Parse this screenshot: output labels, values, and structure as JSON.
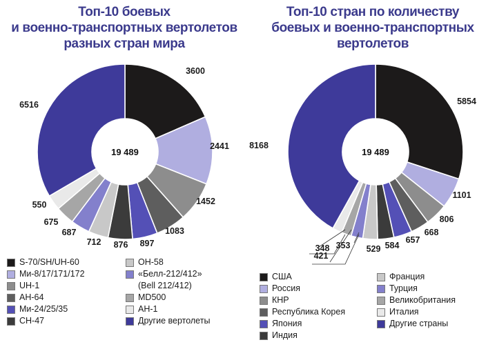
{
  "colors": {
    "title": "#3b3a8c",
    "palette": [
      "#1c1a1a",
      "#b0aee0",
      "#8d8d8d",
      "#5e5e5e",
      "#5450b6",
      "#3b3b3b",
      "#c8c8c8",
      "#8380cc",
      "#a6a6a6",
      "#e9e9e9",
      "#3e3a9a"
    ]
  },
  "chart_data": [
    {
      "type": "pie",
      "title_lines": [
        "Топ-10 боевых",
        "и военно-транспортных вертолетов",
        "разных стран мира"
      ],
      "total_label": "19 489",
      "slices": [
        {
          "label": "S-70/SH/UH-60",
          "value": 3600,
          "value_label": "3600",
          "color": "#1c1a1a"
        },
        {
          "label": "Ми-8/17/171/172",
          "value": 2441,
          "value_label": "2441",
          "color": "#b0aee0"
        },
        {
          "label": "UH-1",
          "value": 1452,
          "value_label": "1452",
          "color": "#8d8d8d"
        },
        {
          "label": "AH-64",
          "value": 1083,
          "value_label": "1083",
          "color": "#5e5e5e"
        },
        {
          "label": "Ми-24/25/35",
          "value": 897,
          "value_label": "897",
          "color": "#5450b6"
        },
        {
          "label": "CH-47",
          "value": 876,
          "value_label": "876",
          "color": "#3b3b3b"
        },
        {
          "label": "OH-58",
          "value": 712,
          "value_label": "712",
          "color": "#c8c8c8"
        },
        {
          "label": "«Белл-212/412»",
          "label2": "(Bell 212/412)",
          "value": 687,
          "value_label": "687",
          "color": "#8380cc"
        },
        {
          "label": "MD500",
          "value": 675,
          "value_label": "675",
          "color": "#a6a6a6"
        },
        {
          "label": "AH-1",
          "value": 550,
          "value_label": "550",
          "color": "#e9e9e9"
        },
        {
          "label": "Другие вертолеты",
          "value": 6516,
          "value_label": "6516",
          "color": "#3e3a9a"
        }
      ]
    },
    {
      "type": "pie",
      "title_lines": [
        "Топ-10 стран по количеству",
        "боевых и военно-транспортных",
        "вертолетов"
      ],
      "total_label": "19 489",
      "slices": [
        {
          "label": "США",
          "value": 5854,
          "value_label": "5854",
          "color": "#1c1a1a"
        },
        {
          "label": "Россия",
          "value": 1101,
          "value_label": "1101",
          "color": "#b0aee0"
        },
        {
          "label": "КНР",
          "value": 806,
          "value_label": "806",
          "color": "#8d8d8d"
        },
        {
          "label": "Республика Корея",
          "value": 668,
          "value_label": "668",
          "color": "#5e5e5e"
        },
        {
          "label": "Япония",
          "value": 657,
          "value_label": "657",
          "color": "#5450b6"
        },
        {
          "label": "Индия",
          "value": 584,
          "value_label": "584",
          "color": "#3b3b3b"
        },
        {
          "label": "Франция",
          "value": 529,
          "value_label": "529",
          "color": "#c8c8c8"
        },
        {
          "label": "Турция",
          "value": 421,
          "value_label": "421",
          "color": "#8380cc"
        },
        {
          "label": "Великобритания",
          "value": 353,
          "value_label": "353",
          "color": "#a6a6a6"
        },
        {
          "label": "Италия",
          "value": 348,
          "value_label": "348",
          "color": "#e9e9e9"
        },
        {
          "label": "Другие страны",
          "value": 8168,
          "value_label": "8168",
          "color": "#3e3a9a"
        }
      ]
    }
  ]
}
